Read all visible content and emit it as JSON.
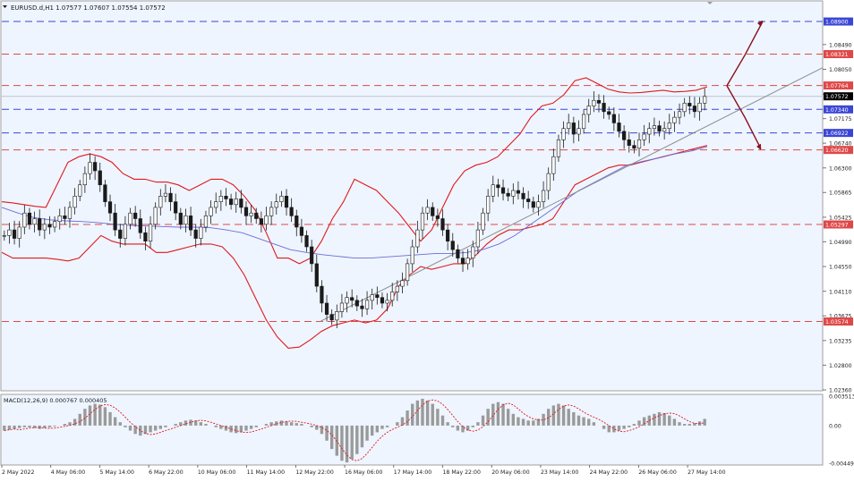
{
  "header": {
    "symbol_line": "EURUSD.d,H1  1.07577 1.07607 1.07554 1.07572"
  },
  "macd_label": "MACD(12,26,9) 0.000767 0.000405",
  "colors": {
    "background": "#eef5ff",
    "axis_bg": "#ffffff",
    "blue_dash": "#3b46d6",
    "red_dash": "#e04848",
    "bollinger": "#e0191c",
    "ma": "#6c6cd8",
    "trend": "#8c8c8c",
    "arrow": "#8b0f1a",
    "candle": "#1a1a1a",
    "signal": "#e0191c"
  },
  "chart_data": [
    {
      "type": "candlestick",
      "title": "EURUSD.d,H1",
      "ohlc_current": {
        "open": 1.07577,
        "high": 1.07607,
        "low": 1.07554,
        "close": 1.07572
      },
      "ylim": [
        1.0236,
        1.0925
      ],
      "y_ticks": [
        "1.08490",
        "1.08050",
        "1.07610",
        "1.07175",
        "1.06740",
        "1.06300",
        "1.05865",
        "1.05425",
        "1.04990",
        "1.04550",
        "1.04110",
        "1.03675",
        "1.03235",
        "1.02800",
        "1.02360"
      ],
      "x_ticks": [
        "2 May 2022",
        "4 May 06:00",
        "5 May 14:00",
        "6 May 22:00",
        "10 May 06:00",
        "11 May 14:00",
        "12 May 22:00",
        "16 May 06:00",
        "17 May 14:00",
        "18 May 22:00",
        "20 May 06:00",
        "23 May 14:00",
        "24 May 22:00",
        "26 May 06:00",
        "27 May 14:00"
      ],
      "levels": [
        {
          "value": 1.089,
          "label": "1.08900",
          "style": "blue"
        },
        {
          "value": 1.08321,
          "label": "1.08321",
          "style": "red"
        },
        {
          "value": 1.07764,
          "label": "1.07764",
          "style": "red"
        },
        {
          "value": 1.0734,
          "label": "1.07340",
          "style": "blue"
        },
        {
          "value": 1.06922,
          "label": "1.06922",
          "style": "blue"
        },
        {
          "value": 1.0662,
          "label": "1.06620",
          "style": "red"
        },
        {
          "value": 1.05297,
          "label": "1.05297",
          "style": "red"
        },
        {
          "value": 1.03574,
          "label": "1.03574",
          "style": "red"
        }
      ],
      "current_price": {
        "value": 1.07572,
        "label": "1.07572"
      },
      "price_path": [
        1.051,
        1.052,
        1.0505,
        1.0525,
        1.055,
        1.053,
        1.054,
        1.052,
        1.053,
        1.0525,
        1.0535,
        1.0545,
        1.054,
        1.056,
        1.058,
        1.06,
        1.062,
        1.064,
        1.0625,
        1.06,
        1.057,
        1.055,
        1.052,
        1.0505,
        1.053,
        1.055,
        1.054,
        1.0515,
        1.05,
        1.053,
        1.056,
        1.058,
        1.0585,
        1.057,
        1.055,
        1.053,
        1.0545,
        1.052,
        1.0505,
        1.0525,
        1.0545,
        1.056,
        1.057,
        1.058,
        1.0575,
        1.0565,
        1.0575,
        1.056,
        1.0545,
        1.055,
        1.054,
        1.053,
        1.0545,
        1.056,
        1.057,
        1.058,
        1.056,
        1.0545,
        1.0525,
        1.051,
        1.049,
        1.046,
        1.042,
        1.039,
        1.037,
        1.036,
        1.0375,
        1.039,
        1.04,
        1.0395,
        1.0385,
        1.038,
        1.0395,
        1.0405,
        1.04,
        1.039,
        1.0395,
        1.041,
        1.042,
        1.043,
        1.046,
        1.049,
        1.052,
        1.055,
        1.056,
        1.0545,
        1.054,
        1.052,
        1.05,
        1.0485,
        1.047,
        1.046,
        1.047,
        1.049,
        1.052,
        1.055,
        1.058,
        1.06,
        1.0595,
        1.0585,
        1.058,
        1.059,
        1.0585,
        1.0575,
        1.057,
        1.056,
        1.057,
        1.059,
        1.062,
        1.065,
        1.068,
        1.07,
        1.071,
        1.069,
        1.07,
        1.0725,
        1.074,
        1.075,
        1.0745,
        1.073,
        1.0725,
        1.071,
        1.0695,
        1.068,
        1.067,
        1.0665,
        1.068,
        1.069,
        1.07,
        1.0705,
        1.0695,
        1.07,
        1.071,
        1.072,
        1.073,
        1.0745,
        1.074,
        1.073,
        1.0745,
        1.0757
      ],
      "bollinger_upper": [
        1.057,
        1.0568,
        1.0565,
        1.0562,
        1.056,
        1.06,
        1.064,
        1.065,
        1.0655,
        1.065,
        1.064,
        1.062,
        1.061,
        1.061,
        1.0605,
        1.0605,
        1.06,
        1.059,
        1.06,
        1.061,
        1.061,
        1.06,
        1.058,
        1.0555,
        1.0515,
        1.047,
        1.047,
        1.046,
        1.047,
        1.05,
        1.054,
        1.057,
        1.061,
        1.06,
        1.059,
        1.057,
        1.055,
        1.0525,
        1.05,
        1.052,
        1.056,
        1.06,
        1.0625,
        1.0635,
        1.064,
        1.065,
        1.067,
        1.069,
        1.072,
        1.074,
        1.0745,
        1.076,
        1.0785,
        1.079,
        1.078,
        1.077,
        1.0765,
        1.0763,
        1.0764,
        1.0766,
        1.0768,
        1.0765,
        1.0766,
        1.0768,
        1.0774
      ],
      "bollinger_lower": [
        1.048,
        1.047,
        1.047,
        1.047,
        1.047,
        1.0468,
        1.0465,
        1.047,
        1.049,
        1.051,
        1.05,
        1.0495,
        1.0495,
        1.0495,
        1.048,
        1.048,
        1.0485,
        1.049,
        1.0495,
        1.0495,
        1.049,
        1.047,
        1.044,
        1.04,
        1.036,
        1.033,
        1.031,
        1.0312,
        1.0325,
        1.034,
        1.035,
        1.0355,
        1.036,
        1.0355,
        1.036,
        1.038,
        1.042,
        1.044,
        1.0455,
        1.045,
        1.0455,
        1.046,
        1.046,
        1.0475,
        1.0495,
        1.051,
        1.052,
        1.052,
        1.0525,
        1.053,
        1.054,
        1.057,
        1.06,
        1.061,
        1.062,
        1.063,
        1.0635,
        1.0635,
        1.064,
        1.0645,
        1.065,
        1.0655,
        1.066,
        1.0665,
        1.067
      ],
      "ma": [
        1.056,
        1.055,
        1.0542,
        1.0538,
        1.0536,
        1.0535,
        1.0533,
        1.053,
        1.0528,
        1.0527,
        1.0526,
        1.0525,
        1.0525,
        1.0524,
        1.052,
        1.0515,
        1.0505,
        1.0495,
        1.0485,
        1.048,
        1.0476,
        1.0473,
        1.047,
        1.047,
        1.0472,
        1.0474,
        1.0476,
        1.0478,
        1.0478,
        1.048,
        1.0485,
        1.0495,
        1.051,
        1.053,
        1.055,
        1.057,
        1.059,
        1.0605,
        1.062,
        1.0635,
        1.0642,
        1.0648,
        1.0655,
        1.066,
        1.0668
      ],
      "macd_histogram": [
        -0.0006,
        -0.0005,
        -0.0004,
        -0.0003,
        -0.0002,
        -0.0002,
        -0.0003,
        -0.0004,
        -0.0003,
        -0.0002,
        -0.0001,
        0.0,
        0.0002,
        0.0004,
        0.0008,
        0.0014,
        0.002,
        0.0024,
        0.0026,
        0.0025,
        0.0022,
        0.0016,
        0.001,
        0.0004,
        -0.0002,
        -0.0006,
        -0.001,
        -0.0012,
        -0.001,
        -0.0008,
        -0.0006,
        -0.0004,
        -0.0002,
        0.0,
        0.0002,
        0.0004,
        0.0006,
        0.0007,
        0.0006,
        0.0004,
        0.0002,
        0.0,
        -0.0002,
        -0.0004,
        -0.0006,
        -0.0008,
        -0.0009,
        -0.0008,
        -0.0006,
        -0.0004,
        -0.0002,
        0.0,
        0.0002,
        0.0004,
        0.0005,
        0.0006,
        0.0005,
        0.0004,
        0.0003,
        0.0002,
        0.0,
        -0.0002,
        -0.0005,
        -0.001,
        -0.0018,
        -0.0028,
        -0.0036,
        -0.0042,
        -0.0044,
        -0.004,
        -0.0034,
        -0.0026,
        -0.0018,
        -0.0012,
        -0.0008,
        -0.0004,
        -0.0002,
        0.0,
        0.0004,
        0.001,
        0.0018,
        0.0026,
        0.003,
        0.0032,
        0.003,
        0.0026,
        0.002,
        0.0012,
        0.0004,
        -0.0002,
        -0.0006,
        -0.0008,
        -0.0006,
        -0.0002,
        0.0004,
        0.0012,
        0.002,
        0.0026,
        0.0028,
        0.0026,
        0.002,
        0.0014,
        0.001,
        0.0008,
        0.0006,
        0.0006,
        0.0008,
        0.0014,
        0.002,
        0.0024,
        0.0026,
        0.0024,
        0.002,
        0.0016,
        0.0012,
        0.001,
        0.0008,
        0.0004,
        0.0,
        -0.0004,
        -0.0008,
        -0.0008,
        -0.0006,
        -0.0004,
        -0.0002,
        0.0002,
        0.0006,
        0.001,
        0.0012,
        0.0014,
        0.0016,
        0.0015,
        0.0012,
        0.0008,
        0.0004,
        0.0002,
        0.0002,
        0.0003,
        0.0005,
        0.0008
      ],
      "macd_ylim": [
        -0.004493,
        0.003513
      ],
      "macd_ticks": [
        "0.003513",
        "0.00",
        "-0.004493"
      ]
    }
  ]
}
